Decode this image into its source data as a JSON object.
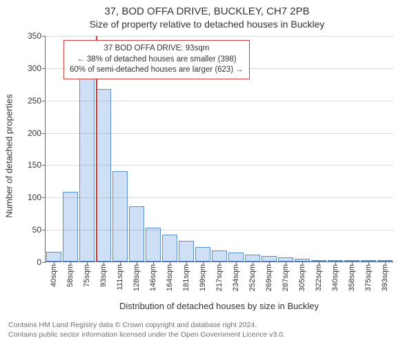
{
  "title_main": "37, BOD OFFA DRIVE, BUCKLEY, CH7 2PB",
  "title_sub": "Size of property relative to detached houses in Buckley",
  "ylabel": "Number of detached properties",
  "xlabel": "Distribution of detached houses by size in Buckley",
  "chart": {
    "type": "histogram",
    "ylim": [
      0,
      350
    ],
    "ytick_step": 50,
    "bar_fill": "#cfe0f6",
    "bar_stroke": "#5a8fcf",
    "background": "#ffffff",
    "grid_color": "#666666",
    "grid_opacity": 0.25,
    "categories": [
      "40sqm",
      "58sqm",
      "75sqm",
      "93sqm",
      "111sqm",
      "128sqm",
      "146sqm",
      "164sqm",
      "181sqm",
      "199sqm",
      "217sqm",
      "234sqm",
      "252sqm",
      "269sqm",
      "287sqm",
      "305sqm",
      "322sqm",
      "340sqm",
      "358sqm",
      "375sqm",
      "393sqm"
    ],
    "values": [
      15,
      108,
      298,
      268,
      140,
      86,
      52,
      42,
      32,
      22,
      17,
      14,
      11,
      9,
      6,
      4,
      2,
      1,
      1,
      1,
      1
    ],
    "marker": {
      "index": 3,
      "color": "#d23a3a"
    }
  },
  "annotation": {
    "border_color": "#d23a3a",
    "line1": "37 BOD OFFA DRIVE: 93sqm",
    "line2": "← 38% of detached houses are smaller (398)",
    "line3": "60% of semi-detached houses are larger (623) →"
  },
  "footer": {
    "line1": "Contains HM Land Registry data © Crown copyright and database right 2024.",
    "line2": "Contains public sector information licensed under the Open Government Licence v3.0."
  }
}
